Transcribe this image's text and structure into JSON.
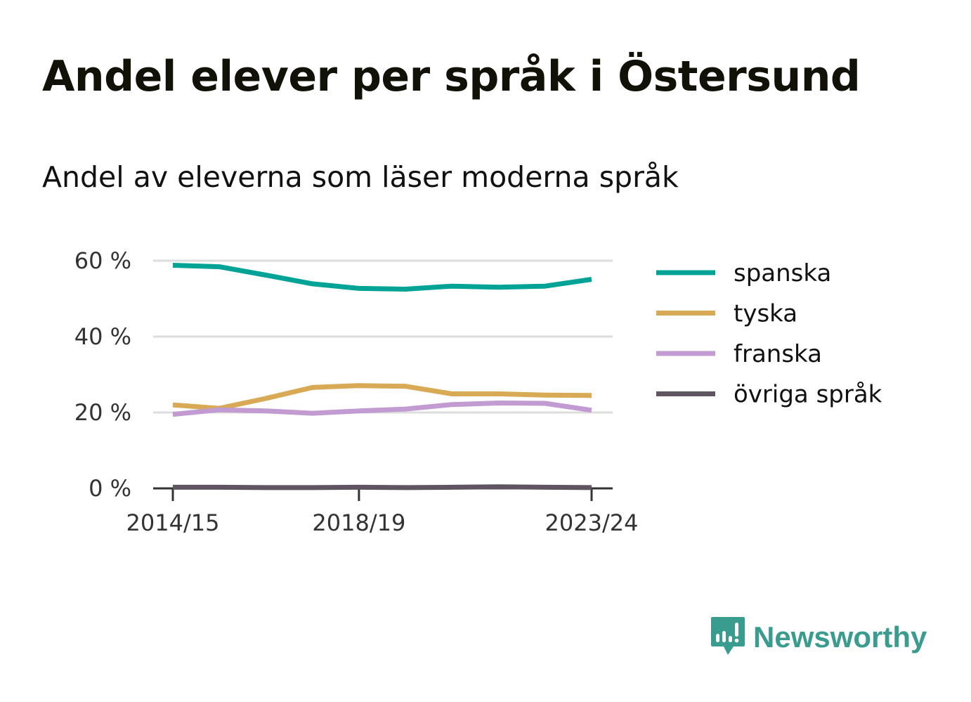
{
  "title": "Andel elever per språk i Östersund",
  "subtitle": "Andel av eleverna som läser moderna språk",
  "brand": {
    "name": "Newsworthy",
    "color": "#3a9b8f",
    "icon": "newsworthy-chart-bubble-icon"
  },
  "colors": {
    "grid": "#dddddd",
    "axis": "#333333"
  },
  "chart_data": {
    "type": "line",
    "title": "Andel av eleverna som läser moderna språk",
    "xlabel": "",
    "ylabel": "",
    "x": [
      "2014/15",
      "2015/16",
      "2016/17",
      "2017/18",
      "2018/19",
      "2019/20",
      "2020/21",
      "2021/22",
      "2022/23",
      "2023/24"
    ],
    "x_tick_labels": [
      "2014/15",
      "2018/19",
      "2023/24"
    ],
    "y_ticks": [
      0,
      20,
      40,
      60
    ],
    "y_tick_labels": [
      "0 %",
      "20 %",
      "40 %",
      "60 %"
    ],
    "ylim": [
      0,
      60
    ],
    "grid": true,
    "legend_position": "right",
    "series": [
      {
        "name": "spanska",
        "color": "#00a396",
        "values": [
          58.8,
          58.4,
          56.2,
          53.9,
          52.7,
          52.5,
          53.3,
          53.0,
          53.3,
          55.1
        ]
      },
      {
        "name": "tyska",
        "color": "#d9aa55",
        "values": [
          22.0,
          21.1,
          23.7,
          26.6,
          27.1,
          26.9,
          24.9,
          24.9,
          24.6,
          24.5
        ]
      },
      {
        "name": "franska",
        "color": "#c19bd1",
        "values": [
          19.5,
          20.7,
          20.4,
          19.8,
          20.4,
          20.9,
          22.1,
          22.5,
          22.4,
          20.6
        ]
      },
      {
        "name": "övriga språk",
        "color": "#5f5561",
        "values": [
          0.3,
          0.3,
          0.2,
          0.2,
          0.3,
          0.2,
          0.3,
          0.4,
          0.3,
          0.2
        ]
      }
    ]
  }
}
